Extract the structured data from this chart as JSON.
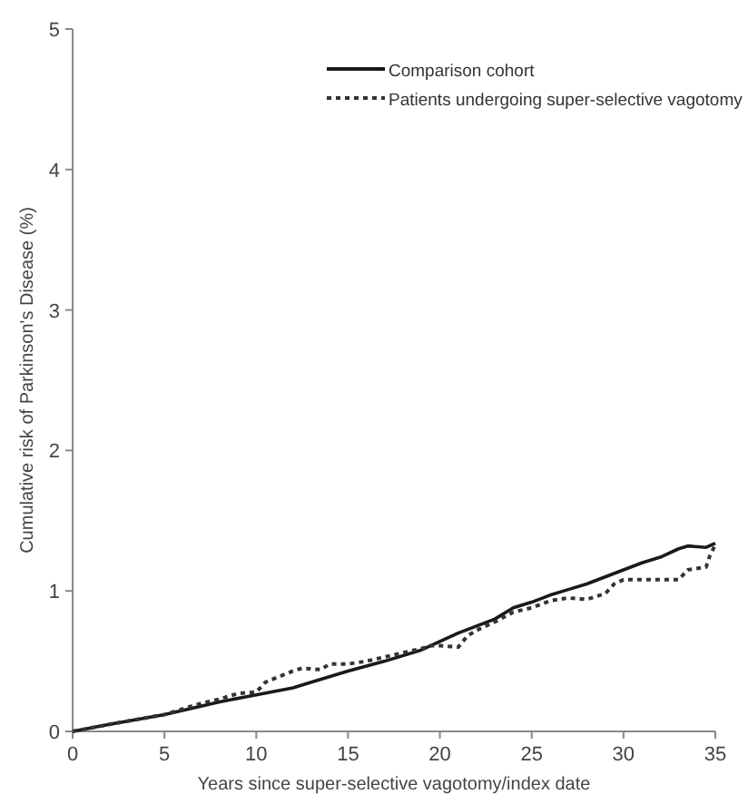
{
  "chart_data": {
    "type": "line",
    "xlabel": "Years since super-selective vagotomy/index date",
    "ylabel": "Cumulative risk of Parkinson's Disease (%)",
    "xlim": [
      0,
      35
    ],
    "ylim": [
      0,
      5
    ],
    "xticks": [
      0,
      5,
      10,
      15,
      20,
      25,
      30,
      35
    ],
    "yticks": [
      0,
      1,
      2,
      3,
      4,
      5
    ],
    "legend": "top right",
    "series": [
      {
        "name": "Comparison cohort",
        "color": "#1a1a1a",
        "line_style": "solid",
        "x": [
          0,
          2,
          5,
          8,
          10,
          12,
          13,
          15,
          17,
          19,
          20,
          21,
          22,
          23,
          24,
          25,
          26,
          27,
          28,
          29,
          30,
          31,
          32,
          33,
          33.5,
          34.5,
          35
        ],
        "values": [
          0,
          0.05,
          0.12,
          0.21,
          0.26,
          0.31,
          0.35,
          0.43,
          0.5,
          0.58,
          0.64,
          0.7,
          0.75,
          0.8,
          0.88,
          0.92,
          0.97,
          1.01,
          1.05,
          1.1,
          1.15,
          1.2,
          1.24,
          1.3,
          1.32,
          1.31,
          1.34
        ]
      },
      {
        "name": "Patients undergoing super-selective vagotomy",
        "color": "#333333",
        "line_style": "dotted",
        "x": [
          0,
          2,
          5,
          7,
          8,
          9,
          10,
          10.5,
          12,
          12.5,
          13.5,
          14,
          15,
          16,
          17,
          18,
          19,
          19.5,
          20,
          21,
          21.5,
          22,
          23,
          24,
          25,
          26,
          27,
          28,
          29,
          29.5,
          30,
          31,
          32,
          33,
          33.5,
          34.5,
          34.7,
          35
        ],
        "values": [
          0,
          0.05,
          0.12,
          0.2,
          0.23,
          0.27,
          0.28,
          0.35,
          0.43,
          0.45,
          0.44,
          0.48,
          0.48,
          0.5,
          0.53,
          0.56,
          0.59,
          0.61,
          0.61,
          0.6,
          0.68,
          0.72,
          0.78,
          0.85,
          0.88,
          0.93,
          0.95,
          0.94,
          0.98,
          1.05,
          1.08,
          1.08,
          1.08,
          1.08,
          1.15,
          1.17,
          1.25,
          1.33
        ]
      }
    ]
  }
}
